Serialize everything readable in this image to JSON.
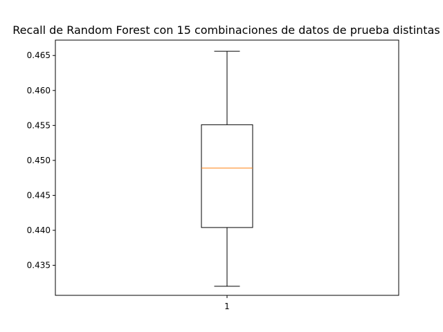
{
  "chart_data": {
    "type": "box",
    "title": "Recall de Random Forest con 15 combinaciones de datos de prueba distintas",
    "xlabel": "",
    "ylabel": "",
    "categories": [
      "1"
    ],
    "ylim": [
      0.4307,
      0.4672
    ],
    "yticks": [
      "0.435",
      "0.440",
      "0.445",
      "0.450",
      "0.455",
      "0.460",
      "0.465"
    ],
    "grid": false,
    "boxes": [
      {
        "category": "1",
        "whisker_low": 0.432,
        "q1": 0.4404,
        "median": 0.4489,
        "q3": 0.4551,
        "whisker_high": 0.4656
      }
    ],
    "colors": {
      "box": "#000000",
      "median": "#ff7f0e",
      "background": "#ffffff"
    }
  }
}
